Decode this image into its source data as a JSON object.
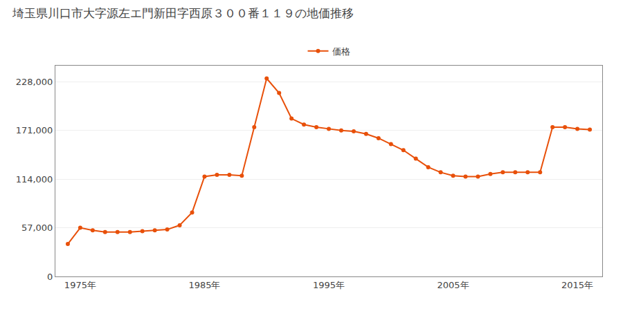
{
  "chart_data": {
    "type": "line",
    "title": "埼玉県川口市大字源左エ門新田字西原３００番１１９の地価推移",
    "x": [
      1974,
      1975,
      1976,
      1977,
      1978,
      1979,
      1980,
      1981,
      1982,
      1983,
      1984,
      1985,
      1986,
      1987,
      1988,
      1989,
      1990,
      1991,
      1992,
      1993,
      1994,
      1995,
      1996,
      1997,
      1998,
      1999,
      2000,
      2001,
      2002,
      2003,
      2004,
      2005,
      2006,
      2007,
      2008,
      2009,
      2010,
      2011,
      2012,
      2013,
      2014,
      2015,
      2016
    ],
    "series": [
      {
        "name": "価格",
        "color": "#E8500A",
        "marker": "circle",
        "values": [
          38000,
          57000,
          54000,
          52000,
          52000,
          52000,
          53000,
          54000,
          55000,
          60000,
          75000,
          117000,
          119000,
          119000,
          118000,
          175000,
          232000,
          215000,
          185000,
          178000,
          175000,
          173000,
          171000,
          170000,
          167000,
          162000,
          155000,
          148000,
          138000,
          128000,
          122000,
          118000,
          117000,
          117000,
          120000,
          122000,
          122000,
          122000,
          122000,
          175000,
          175000,
          173000,
          172000
        ]
      }
    ],
    "xlim": [
      1973,
      2017
    ],
    "xticks": [
      {
        "value": 1975,
        "label": "1975年"
      },
      {
        "value": 1985,
        "label": "1985年"
      },
      {
        "value": 1995,
        "label": "1995年"
      },
      {
        "value": 2005,
        "label": "2005年"
      },
      {
        "value": 2015,
        "label": "2015年"
      }
    ],
    "ylim": [
      0,
      247000
    ],
    "yticks": [
      0,
      {
        "value": 57000,
        "label": "57,000"
      },
      {
        "value": 114000,
        "label": "114,000"
      },
      {
        "value": 171000,
        "label": "171,000"
      },
      {
        "value": 228000,
        "label": "228,000"
      }
    ],
    "grid": "y",
    "legend": "upper center"
  }
}
